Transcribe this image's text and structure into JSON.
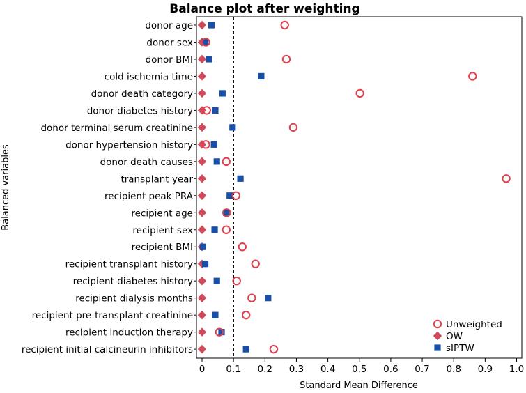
{
  "chart_data": {
    "type": "scatter",
    "title": "Balance plot after weighting",
    "xlabel": "Standard Mean Difference",
    "ylabel": "Balanced variables",
    "xlim": [
      -0.03,
      1.0
    ],
    "xticks": [
      "0",
      "0.1",
      "0.2",
      "0.3",
      "0.4",
      "0.5",
      "0.6",
      "0.7",
      "0.8",
      "0.9",
      "1.0"
    ],
    "reference_line": 0.1,
    "grid": false,
    "legend_position": "bottom-right",
    "categories": [
      "donor age",
      "donor sex",
      "donor BMI",
      "cold ischemia time",
      "donor death category",
      "donor diabetes history",
      "donor terminal serum creatinine",
      "donor hypertension history",
      "donor death causes",
      "transplant year",
      "recipient peak PRA",
      "recipient age",
      "recipient sex",
      "recipient BMI",
      "recipient transplant history",
      "recipient diabetes history",
      "recipient dialysis months",
      "recipient pre-transplant creatinine",
      "recipient induction therapy",
      "recipient initial calcineurin inhibitors"
    ],
    "series": [
      {
        "name": "Unweighted",
        "marker": "circle-open",
        "color": "#e0404c",
        "values": [
          0.263,
          0.012,
          0.268,
          0.86,
          0.502,
          0.015,
          0.29,
          0.012,
          0.077,
          0.967,
          0.108,
          0.078,
          0.077,
          0.128,
          0.17,
          0.11,
          0.158,
          0.14,
          0.055,
          0.228
        ]
      },
      {
        "name": "OW",
        "marker": "diamond",
        "color": "#d04a5c",
        "values": [
          0,
          0,
          0,
          0,
          0,
          0,
          0,
          0,
          0,
          0,
          0,
          0,
          0,
          0,
          0,
          0,
          0,
          0,
          0,
          0
        ]
      },
      {
        "name": "sIPTW",
        "marker": "square",
        "color": "#1a4fa8",
        "values": [
          0.03,
          0.01,
          0.022,
          0.188,
          0.065,
          0.042,
          0.097,
          0.038,
          0.047,
          0.122,
          0.088,
          0.077,
          0.04,
          0.003,
          0.01,
          0.047,
          0.21,
          0.042,
          0.062,
          0.14
        ]
      }
    ]
  }
}
